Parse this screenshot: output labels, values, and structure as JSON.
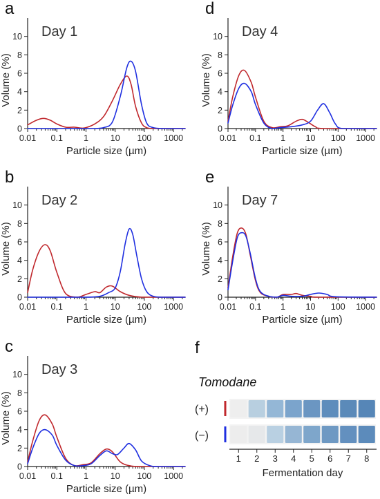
{
  "colors": {
    "plus": "#c0282d",
    "minus": "#1f2fe0"
  },
  "chart_data": [
    {
      "type": "line",
      "panel": "a",
      "annotation": "Day 1",
      "xlabel": "Particle size (µm)",
      "ylabel": "Volume (%)",
      "xscale": "log",
      "xlim": [
        0.01,
        2500
      ],
      "ylim": [
        0,
        12
      ],
      "xticks": [
        0.01,
        0.1,
        1,
        10,
        100,
        1000
      ],
      "xtick_labels": [
        "0.01",
        "0.1",
        "1",
        "10",
        "100",
        "1000"
      ],
      "yticks": [
        0,
        2,
        4,
        6,
        8,
        10
      ],
      "ytick_labels": [
        "0",
        "2",
        "4",
        "6",
        "8",
        "10"
      ],
      "grid": false,
      "series": [
        {
          "color": "#c0282d",
          "x": [
            0.01,
            0.02,
            0.035,
            0.06,
            0.1,
            0.2,
            0.4,
            0.7,
            1,
            2,
            4,
            8,
            15,
            25,
            35,
            50,
            80,
            120,
            200,
            500,
            2500
          ],
          "y": [
            0.4,
            0.9,
            1.1,
            0.9,
            0.5,
            0.15,
            0.15,
            0.05,
            0.1,
            0.5,
            1.3,
            3.0,
            4.8,
            5.7,
            4.8,
            2.4,
            0.6,
            0.1,
            0.0,
            0.0,
            0.0
          ]
        },
        {
          "color": "#1f2fe0",
          "x": [
            0.01,
            0.1,
            1,
            2,
            4,
            8,
            15,
            25,
            35,
            50,
            80,
            120,
            200,
            500,
            2500
          ],
          "y": [
            0.0,
            0.0,
            0.0,
            0.0,
            0.1,
            0.7,
            3.5,
            6.6,
            7.3,
            6.2,
            2.6,
            0.6,
            0.1,
            0.0,
            0.0
          ]
        }
      ]
    },
    {
      "type": "line",
      "panel": "b",
      "annotation": "Day 2",
      "xlabel": "Particle size (µm)",
      "ylabel": "Volume (%)",
      "xscale": "log",
      "xlim": [
        0.01,
        2500
      ],
      "ylim": [
        0,
        12
      ],
      "xticks": [
        0.01,
        0.1,
        1,
        10,
        100,
        1000
      ],
      "xtick_labels": [
        "0.01",
        "0.1",
        "1",
        "10",
        "100",
        "1000"
      ],
      "yticks": [
        0,
        2,
        4,
        6,
        8,
        10
      ],
      "ytick_labels": [
        "0",
        "2",
        "4",
        "6",
        "8",
        "10"
      ],
      "grid": false,
      "series": [
        {
          "color": "#c0282d",
          "x": [
            0.01,
            0.015,
            0.025,
            0.04,
            0.06,
            0.1,
            0.2,
            0.5,
            1,
            2,
            3,
            5,
            8,
            15,
            30,
            80,
            200,
            2500
          ],
          "y": [
            0.5,
            3.0,
            5.0,
            5.7,
            5.0,
            2.7,
            0.4,
            0.0,
            0.3,
            0.6,
            0.5,
            1.1,
            1.2,
            0.6,
            0.2,
            0.0,
            0.0,
            0.0
          ]
        },
        {
          "color": "#1f2fe0",
          "x": [
            0.01,
            0.1,
            1,
            3,
            6,
            10,
            15,
            22,
            30,
            40,
            55,
            80,
            120,
            200,
            400,
            2500
          ],
          "y": [
            0.0,
            0.0,
            0.0,
            0.1,
            0.5,
            1.0,
            2.8,
            5.8,
            7.4,
            6.8,
            4.5,
            2.0,
            0.6,
            0.1,
            0.0,
            0.0
          ]
        }
      ]
    },
    {
      "type": "line",
      "panel": "c",
      "annotation": "Day 3",
      "xlabel": "Particle size (µm)",
      "ylabel": "Volume (%)",
      "xscale": "log",
      "xlim": [
        0.01,
        2500
      ],
      "ylim": [
        0,
        12
      ],
      "xticks": [
        0.01,
        0.1,
        1,
        10,
        100,
        1000
      ],
      "xtick_labels": [
        "0.01",
        "0.1",
        "1",
        "10",
        "100",
        "1000"
      ],
      "yticks": [
        0,
        2,
        4,
        6,
        8,
        10
      ],
      "ytick_labels": [
        "0",
        "2",
        "4",
        "6",
        "8",
        "10"
      ],
      "grid": false,
      "series": [
        {
          "color": "#c0282d",
          "x": [
            0.01,
            0.015,
            0.025,
            0.04,
            0.07,
            0.1,
            0.2,
            0.4,
            0.8,
            1.5,
            3,
            5,
            8,
            15,
            30,
            80,
            2500
          ],
          "y": [
            0.5,
            2.8,
            5.0,
            5.6,
            4.6,
            3.2,
            0.9,
            0.1,
            0.2,
            0.4,
            1.4,
            1.9,
            1.6,
            0.5,
            0.1,
            0.0,
            0.0
          ]
        },
        {
          "color": "#1f2fe0",
          "x": [
            0.01,
            0.015,
            0.025,
            0.04,
            0.07,
            0.1,
            0.2,
            0.4,
            0.8,
            1.5,
            3,
            5,
            8,
            12,
            20,
            30,
            50,
            80,
            150,
            300,
            2500
          ],
          "y": [
            0.3,
            2.0,
            3.6,
            4.0,
            3.4,
            2.3,
            0.7,
            0.1,
            0.1,
            0.3,
            1.2,
            1.7,
            1.4,
            1.3,
            2.0,
            2.5,
            1.8,
            0.6,
            0.1,
            0.0,
            0.0
          ]
        }
      ]
    },
    {
      "type": "line",
      "panel": "d",
      "annotation": "Day 4",
      "xlabel": "Particle size (µm)",
      "ylabel": "Volume (%)",
      "xscale": "log",
      "xlim": [
        0.01,
        2500
      ],
      "ylim": [
        0,
        12
      ],
      "xticks": [
        0.01,
        0.1,
        1,
        10,
        100,
        1000
      ],
      "xtick_labels": [
        "0.01",
        "0.1",
        "1",
        "10",
        "100",
        "1000"
      ],
      "yticks": [
        0,
        2,
        4,
        6,
        8,
        10
      ],
      "ytick_labels": [
        "0",
        "2",
        "4",
        "6",
        "8",
        "10"
      ],
      "grid": false,
      "series": [
        {
          "color": "#c0282d",
          "x": [
            0.01,
            0.015,
            0.025,
            0.04,
            0.07,
            0.1,
            0.2,
            0.4,
            0.8,
            1.5,
            3,
            5,
            8,
            15,
            30,
            2500
          ],
          "y": [
            0.8,
            3.5,
            5.8,
            6.3,
            5.0,
            3.4,
            0.8,
            0.1,
            0.2,
            0.3,
            0.8,
            1.0,
            0.7,
            0.2,
            0.0,
            0.0
          ]
        },
        {
          "color": "#1f2fe0",
          "x": [
            0.01,
            0.015,
            0.025,
            0.04,
            0.07,
            0.1,
            0.2,
            0.4,
            0.8,
            2,
            5,
            10,
            18,
            30,
            50,
            80,
            150,
            2500
          ],
          "y": [
            0.6,
            2.6,
            4.4,
            4.9,
            4.0,
            2.6,
            0.6,
            0.0,
            0.1,
            0.2,
            0.4,
            0.8,
            2.0,
            2.7,
            1.7,
            0.5,
            0.0,
            0.0
          ]
        }
      ]
    },
    {
      "type": "line",
      "panel": "e",
      "annotation": "Day 7",
      "xlabel": "Particle size (µm)",
      "ylabel": "Volume (%)",
      "xscale": "log",
      "xlim": [
        0.01,
        2500
      ],
      "ylim": [
        0,
        12
      ],
      "xticks": [
        0.01,
        0.1,
        1,
        10,
        100,
        1000
      ],
      "xtick_labels": [
        "0.01",
        "0.1",
        "1",
        "10",
        "100",
        "1000"
      ],
      "yticks": [
        0,
        2,
        4,
        6,
        8,
        10
      ],
      "ytick_labels": [
        "0",
        "2",
        "4",
        "6",
        "8",
        "10"
      ],
      "grid": false,
      "series": [
        {
          "color": "#c0282d",
          "x": [
            0.01,
            0.015,
            0.022,
            0.032,
            0.045,
            0.065,
            0.1,
            0.15,
            0.3,
            0.6,
            1,
            2,
            3,
            5,
            10,
            20,
            2500
          ],
          "y": [
            1.0,
            4.5,
            7.0,
            7.5,
            6.8,
            4.5,
            1.8,
            0.5,
            0.1,
            0.0,
            0.3,
            0.3,
            0.4,
            0.2,
            0.1,
            0.0,
            0.0
          ]
        },
        {
          "color": "#1f2fe0",
          "x": [
            0.01,
            0.015,
            0.022,
            0.032,
            0.045,
            0.065,
            0.1,
            0.15,
            0.3,
            0.6,
            1,
            2,
            5,
            10,
            20,
            40,
            80,
            2500
          ],
          "y": [
            0.8,
            4.0,
            6.5,
            7.0,
            6.6,
            4.7,
            2.0,
            0.6,
            0.1,
            0.0,
            0.2,
            0.1,
            0.1,
            0.3,
            0.45,
            0.3,
            0.05,
            0.0
          ]
        }
      ]
    }
  ],
  "panel_f": {
    "letter": "f",
    "title": "Tomodane",
    "rows": [
      {
        "label": "(+)",
        "swatches": [
          "#eeeeee",
          "#b8cfe0",
          "#94b7d6",
          "#7ba4cc",
          "#6b96c2",
          "#5e8dbc",
          "#5b8ab9",
          "#5686b7"
        ]
      },
      {
        "label": "(−)",
        "swatches": [
          "#ededed",
          "#e6e8ea",
          "#b9d0e2",
          "#96b6d4",
          "#7ea6cb",
          "#6e99c3",
          "#6390bf",
          "#5c8bbb"
        ]
      }
    ],
    "x_ticks": [
      "1",
      "2",
      "3",
      "4",
      "5",
      "6",
      "7",
      "8"
    ],
    "xlabel": "Fermentation day"
  }
}
